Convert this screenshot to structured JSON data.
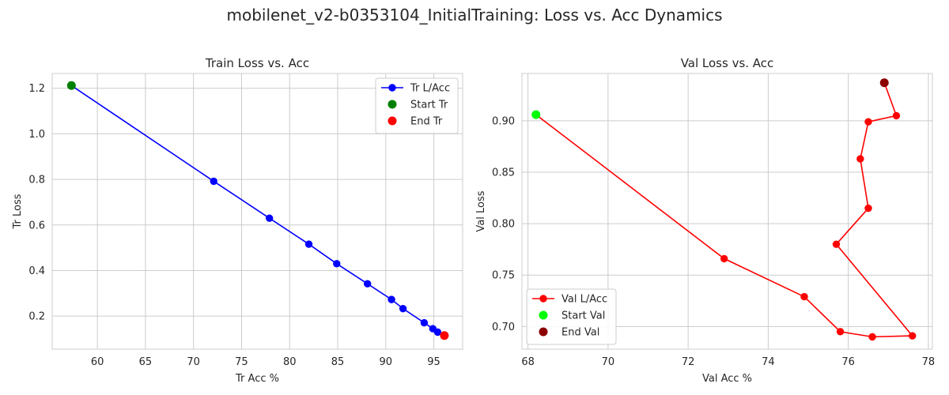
{
  "figure": {
    "title": "mobilenet_v2-b0353104_InitialTraining: Loss vs. Acc Dynamics"
  },
  "chart_data": [
    {
      "type": "line",
      "title": "Train Loss vs. Acc",
      "xlabel": "Tr Acc %",
      "ylabel": "Tr Loss",
      "xlim": [
        55.3,
        98.0
      ],
      "ylim": [
        0.055,
        1.265
      ],
      "xticks": [
        60,
        65,
        70,
        75,
        80,
        85,
        90,
        95
      ],
      "yticks": [
        0.2,
        0.4,
        0.6,
        0.8,
        1.0,
        1.2
      ],
      "grid": true,
      "legend_position": "top-right",
      "series": [
        {
          "name": "Tr L/Acc",
          "color": "#0000ff",
          "x": [
            57.3,
            72.1,
            77.9,
            82.0,
            84.9,
            88.1,
            90.6,
            91.8,
            94.0,
            94.9,
            95.4,
            96.1
          ],
          "y": [
            1.212,
            0.792,
            0.63,
            0.516,
            0.43,
            0.342,
            0.273,
            0.233,
            0.171,
            0.145,
            0.13,
            0.115
          ]
        }
      ],
      "markers": [
        {
          "name": "Start Tr",
          "color": "#008000",
          "x": 57.3,
          "y": 1.212
        },
        {
          "name": "End Tr",
          "color": "#ff0000",
          "x": 96.1,
          "y": 0.115
        }
      ]
    },
    {
      "type": "line",
      "title": "Val Loss vs. Acc",
      "xlabel": "Val Acc %",
      "ylabel": "Val Loss",
      "xlim": [
        67.85,
        78.1
      ],
      "ylim": [
        0.678,
        0.946
      ],
      "xticks": [
        68,
        70,
        72,
        74,
        76,
        78
      ],
      "yticks": [
        0.7,
        0.75,
        0.8,
        0.85,
        0.9
      ],
      "grid": true,
      "legend_position": "bottom-left",
      "series": [
        {
          "name": "Val L/Acc",
          "color": "#ff0000",
          "x": [
            68.2,
            72.9,
            74.9,
            75.8,
            76.6,
            77.6,
            75.7,
            76.5,
            76.3,
            76.5,
            77.2,
            76.9
          ],
          "y": [
            0.906,
            0.766,
            0.729,
            0.695,
            0.69,
            0.691,
            0.78,
            0.815,
            0.863,
            0.899,
            0.905,
            0.937
          ]
        }
      ],
      "markers": [
        {
          "name": "Start Val",
          "color": "#00ff00",
          "x": 68.2,
          "y": 0.906
        },
        {
          "name": "End Val",
          "color": "#8b0000",
          "x": 76.9,
          "y": 0.937
        }
      ]
    }
  ]
}
